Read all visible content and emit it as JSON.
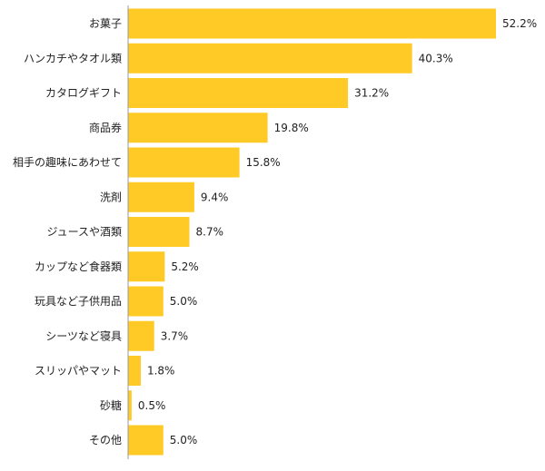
{
  "chart_data": {
    "type": "bar",
    "orientation": "horizontal",
    "title": "",
    "xlabel": "",
    "ylabel": "",
    "grid": false,
    "legend": "none",
    "xlim": [
      0,
      52.2
    ],
    "value_suffix": "%",
    "bar_color": "#FFC926",
    "axis_color": "#999999",
    "text_color": "#222222",
    "categories": [
      "お菓子",
      "ハンカチやタオル類",
      "カタログギフト",
      "商品券",
      "相手の趣味にあわせて",
      "洗剤",
      "ジュースや酒類",
      "カップなど食器類",
      "玩具など子供用品",
      "シーツなど寝具",
      "スリッパやマット",
      "砂糖",
      "その他"
    ],
    "values": [
      52.2,
      40.3,
      31.2,
      19.8,
      15.8,
      9.4,
      8.7,
      5.2,
      5.0,
      3.7,
      1.8,
      0.5,
      5.0
    ],
    "value_labels": [
      "52.2%",
      "40.3%",
      "31.2%",
      "19.8%",
      "15.8%",
      "9.4%",
      "8.7%",
      "5.2%",
      "5.0%",
      "3.7%",
      "1.8%",
      "0.5%",
      "5.0%"
    ]
  }
}
